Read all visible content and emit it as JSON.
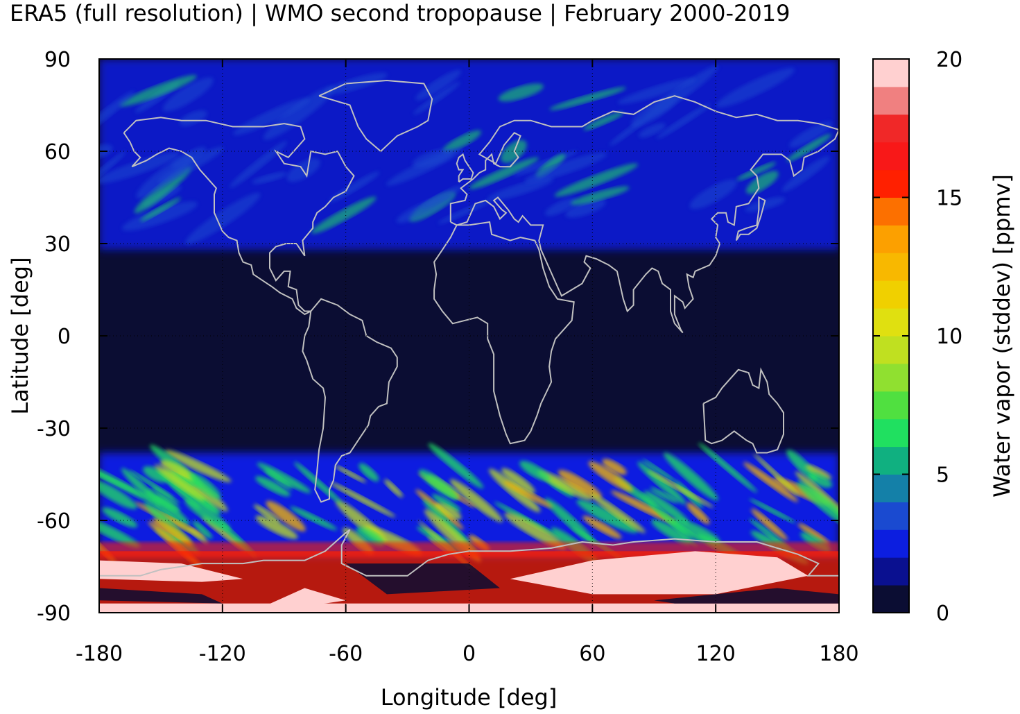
{
  "title": "ERA5 (full resolution) | WMO second tropopause | February 2000-2019",
  "map": {
    "projection": "equirectangular",
    "lon_range": [
      -180,
      180
    ],
    "lat_range": [
      -90,
      90
    ],
    "xlabel": "Longitude [deg]",
    "ylabel": "Latitude [deg]",
    "x_ticks": [
      "-180",
      "-120",
      "-60",
      "0",
      "60",
      "120",
      "180"
    ],
    "y_ticks": [
      "90",
      "60",
      "30",
      "0",
      "-30",
      "-60",
      "-90"
    ],
    "background_color": "#0b0d33",
    "coastline_color": "#c0c0c0",
    "grid": "dotted"
  },
  "colorbar": {
    "label": "Water vapor (stddev) [ppmv]",
    "ticks": [
      "0",
      "5",
      "10",
      "15",
      "20"
    ],
    "range": [
      0,
      20
    ],
    "colors": [
      "#0b0d33",
      "#0a1090",
      "#0c1ee0",
      "#1a4ad0",
      "#1480a8",
      "#10b080",
      "#20e060",
      "#50e040",
      "#90e030",
      "#c0e020",
      "#e0e010",
      "#f0d000",
      "#f8b800",
      "#fca000",
      "#fc7000",
      "#ff2000",
      "#f81818",
      "#f02828",
      "#f08080",
      "#ffd0d0"
    ]
  },
  "chart_data": {
    "type": "heatmap",
    "title": "ERA5 (full resolution) | WMO second tropopause | February 2000-2019",
    "xlabel": "Longitude [deg]",
    "ylabel": "Latitude [deg]",
    "xlim": [
      -180,
      180
    ],
    "ylim": [
      -90,
      90
    ],
    "colorbar_label": "Water vapor (stddev) [ppmv]",
    "clim": [
      0,
      20
    ],
    "zonal_bands": [
      {
        "lat": [
          60,
          90
        ],
        "typical_value": 2
      },
      {
        "lat": [
          30,
          60
        ],
        "typical_value": 1.5
      },
      {
        "lat": [
          -40,
          30
        ],
        "typical_value": 0
      },
      {
        "lat": [
          -70,
          -40
        ],
        "typical_value": 4
      },
      {
        "lat": [
          -90,
          -70
        ],
        "typical_value": 20
      }
    ]
  }
}
